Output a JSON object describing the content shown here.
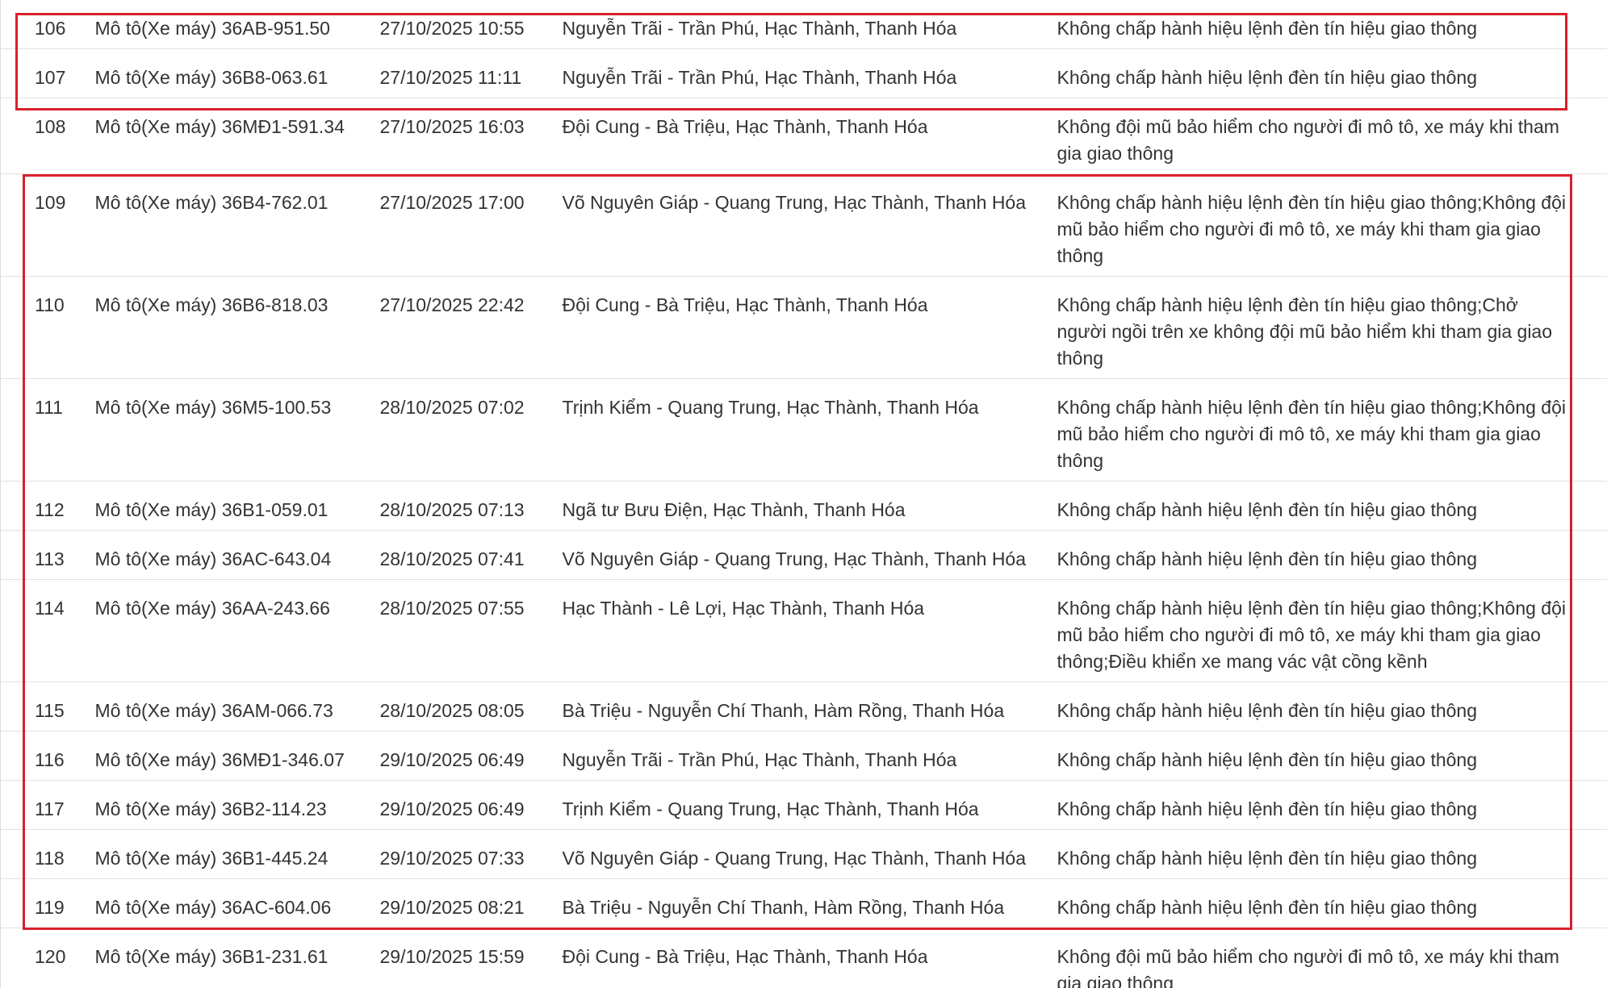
{
  "table": {
    "rows": [
      [
        "106",
        "Mô tô(Xe máy) 36AB-951.50",
        "27/10/2025 10:55",
        "Nguyễn Trãi - Trần Phú, Hạc Thành, Thanh Hóa",
        "Không chấp hành hiệu lệnh đèn tín hiệu giao thông"
      ],
      [
        "107",
        "Mô tô(Xe máy) 36B8-063.61",
        "27/10/2025 11:11",
        "Nguyễn Trãi - Trần Phú, Hạc Thành, Thanh Hóa",
        "Không chấp hành hiệu lệnh đèn tín hiệu giao thông"
      ],
      [
        "108",
        "Mô tô(Xe máy) 36MĐ1-591.34",
        "27/10/2025 16:03",
        "Đội Cung - Bà Triệu, Hạc Thành, Thanh Hóa",
        "Không đội mũ bảo hiểm cho người đi mô tô, xe máy khi tham gia giao thông"
      ],
      [
        "109",
        "Mô tô(Xe máy) 36B4-762.01",
        "27/10/2025 17:00",
        "Võ Nguyên Giáp - Quang Trung, Hạc Thành, Thanh Hóa",
        "Không chấp hành hiệu lệnh đèn tín hiệu giao thông;Không đội mũ bảo hiểm cho người đi mô tô, xe máy khi tham gia giao thông"
      ],
      [
        "110",
        "Mô tô(Xe máy) 36B6-818.03",
        "27/10/2025 22:42",
        "Đội Cung - Bà Triệu, Hạc Thành, Thanh Hóa",
        "Không chấp hành hiệu lệnh đèn tín hiệu giao thông;Chở người ngồi trên xe không đội mũ bảo hiểm khi tham gia giao thông"
      ],
      [
        "111",
        "Mô tô(Xe máy) 36M5-100.53",
        "28/10/2025 07:02",
        "Trịnh Kiểm - Quang Trung, Hạc Thành, Thanh Hóa",
        "Không chấp hành hiệu lệnh đèn tín hiệu giao thông;Không đội mũ bảo hiểm cho người đi mô tô, xe máy khi tham gia giao thông"
      ],
      [
        "112",
        "Mô tô(Xe máy) 36B1-059.01",
        "28/10/2025 07:13",
        "Ngã tư Bưu Điện, Hạc Thành, Thanh Hóa",
        "Không chấp hành hiệu lệnh đèn tín hiệu giao thông"
      ],
      [
        "113",
        "Mô tô(Xe máy) 36AC-643.04",
        "28/10/2025 07:41",
        "Võ Nguyên Giáp - Quang Trung, Hạc Thành, Thanh Hóa",
        "Không chấp hành hiệu lệnh đèn tín hiệu giao thông"
      ],
      [
        "114",
        "Mô tô(Xe máy) 36AA-243.66",
        "28/10/2025 07:55",
        "Hạc Thành - Lê Lợi, Hạc Thành, Thanh Hóa",
        "Không chấp hành hiệu lệnh đèn tín hiệu giao thông;Không đội mũ bảo hiểm cho người đi mô tô, xe máy khi tham gia giao thông;Điều khiển xe mang vác vật cồng kềnh"
      ],
      [
        "115",
        "Mô tô(Xe máy) 36AM-066.73",
        "28/10/2025 08:05",
        "Bà Triệu - Nguyễn Chí Thanh, Hàm Rồng, Thanh Hóa",
        "Không chấp hành hiệu lệnh đèn tín hiệu giao thông"
      ],
      [
        "116",
        "Mô tô(Xe máy) 36MĐ1-346.07",
        "29/10/2025 06:49",
        "Nguyễn Trãi - Trần Phú, Hạc Thành, Thanh Hóa",
        "Không chấp hành hiệu lệnh đèn tín hiệu giao thông"
      ],
      [
        "117",
        "Mô tô(Xe máy) 36B2-114.23",
        "29/10/2025 06:49",
        "Trịnh Kiểm - Quang Trung, Hạc Thành, Thanh Hóa",
        "Không chấp hành hiệu lệnh đèn tín hiệu giao thông"
      ],
      [
        "118",
        "Mô tô(Xe máy) 36B1-445.24",
        "29/10/2025 07:33",
        "Võ Nguyên Giáp - Quang Trung, Hạc Thành, Thanh Hóa",
        "Không chấp hành hiệu lệnh đèn tín hiệu giao thông"
      ],
      [
        "119",
        "Mô tô(Xe máy) 36AC-604.06",
        "29/10/2025 08:21",
        "Bà Triệu - Nguyễn Chí Thanh, Hàm Rồng, Thanh Hóa",
        "Không chấp hành hiệu lệnh đèn tín hiệu giao thông"
      ],
      [
        "120",
        "Mô tô(Xe máy) 36B1-231.61",
        "29/10/2025 15:59",
        "Đội Cung - Bà Triệu, Hạc Thành, Thanh Hóa",
        "Không đội mũ bảo hiểm cho người đi mô tô, xe máy khi tham gia giao thông"
      ]
    ]
  }
}
